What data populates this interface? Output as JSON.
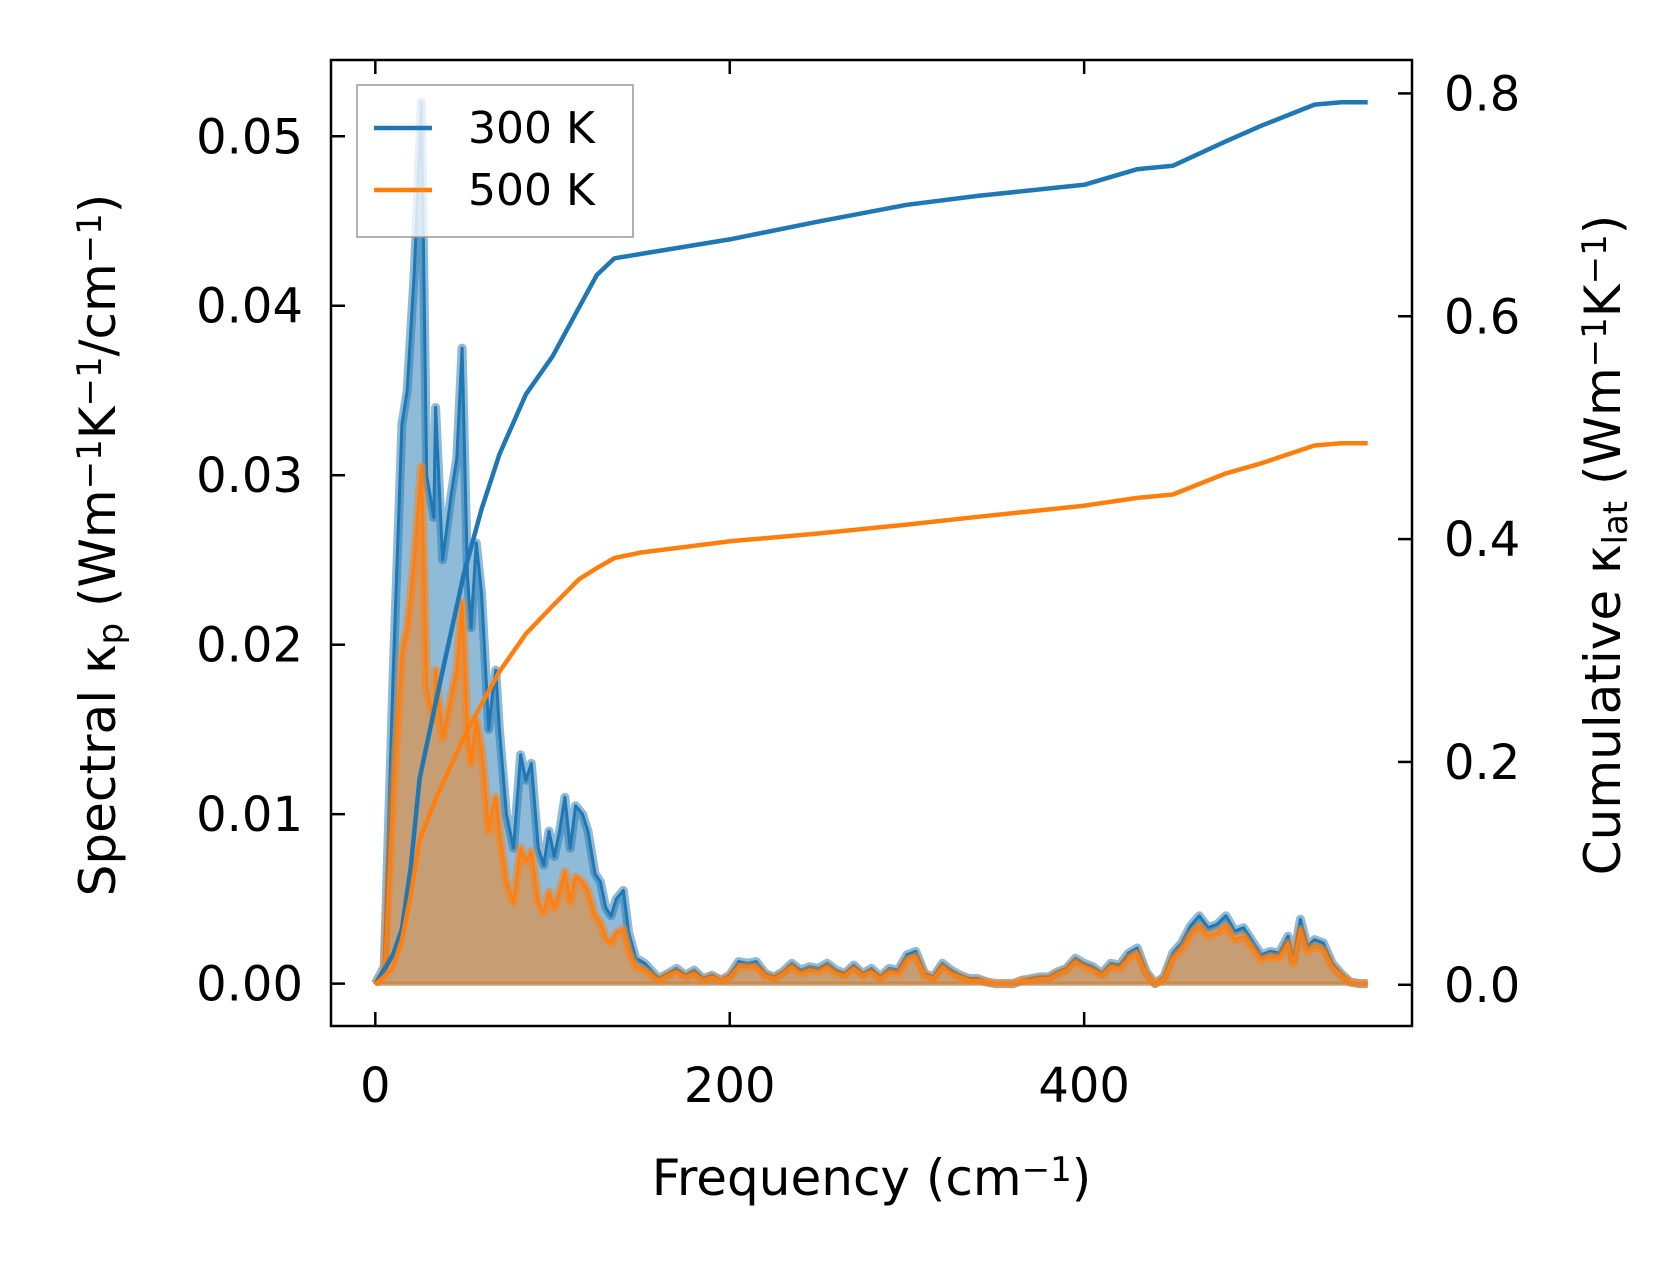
{
  "chart_data": {
    "type": "area+line",
    "xlabel": [
      {
        "t": "Frequency (cm"
      },
      {
        "t": "−1",
        "sup": true
      },
      {
        "t": ")"
      }
    ],
    "ylabel": [
      {
        "t": "Spectral κ"
      },
      {
        "t": "p",
        "sub": true
      },
      {
        "t": " (Wm"
      },
      {
        "t": "−1",
        "sup": true
      },
      {
        "t": "K"
      },
      {
        "t": "−1",
        "sup": true
      },
      {
        "t": "/cm"
      },
      {
        "t": "−1",
        "sup": true
      },
      {
        "t": ")"
      }
    ],
    "y2label": [
      {
        "t": "Cumulative κ"
      },
      {
        "t": "lat",
        "sub": true
      },
      {
        "t": " (Wm"
      },
      {
        "t": "−1",
        "sup": true
      },
      {
        "t": "K"
      },
      {
        "t": "−1",
        "sup": true
      },
      {
        "t": ")"
      }
    ],
    "xlim": [
      -25,
      585
    ],
    "ylim": [
      -0.0025,
      0.0545
    ],
    "y2lim": [
      -0.037,
      0.83
    ],
    "x_ticks": [
      0,
      200,
      400
    ],
    "x_tick_labels": [
      "0",
      "200",
      "400"
    ],
    "y_ticks": [
      0,
      0.01,
      0.02,
      0.03,
      0.04,
      0.05
    ],
    "y_tick_labels": [
      "0.00",
      "0.01",
      "0.02",
      "0.03",
      "0.04",
      "0.05"
    ],
    "y2_ticks": [
      0,
      0.2,
      0.4,
      0.6,
      0.8
    ],
    "y2_tick_labels": [
      "0.0",
      "0.2",
      "0.4",
      "0.6",
      "0.8"
    ],
    "legend": {
      "placement": "top-left",
      "entries": [
        "300 K",
        "500 K"
      ]
    },
    "colors": {
      "300 K": "#1f77b4",
      "500 K": "#ff7f0e"
    },
    "spectral": {
      "x": [
        0,
        5,
        10,
        15,
        18,
        22,
        26,
        29,
        33,
        34,
        38,
        43,
        46,
        49,
        52,
        54,
        57,
        60,
        62,
        64,
        66,
        68,
        70,
        74,
        78,
        82,
        85,
        88,
        92,
        95,
        98,
        101,
        104,
        107,
        110,
        113,
        117,
        120,
        124,
        127,
        130,
        133,
        136,
        140,
        143,
        147,
        152,
        160,
        165,
        170,
        175,
        180,
        185,
        190,
        195,
        200,
        205,
        210,
        215,
        220,
        225,
        230,
        235,
        240,
        245,
        250,
        255,
        260,
        265,
        270,
        275,
        280,
        285,
        290,
        295,
        300,
        305,
        310,
        315,
        320,
        325,
        330,
        335,
        340,
        345,
        350,
        360,
        365,
        370,
        375,
        380,
        385,
        390,
        395,
        400,
        405,
        410,
        415,
        420,
        425,
        430,
        435,
        440,
        445,
        450,
        455,
        460,
        465,
        470,
        475,
        480,
        485,
        490,
        495,
        500,
        505,
        510,
        515,
        518,
        522,
        526,
        530,
        535,
        540,
        545,
        550,
        555,
        560
      ],
      "series": [
        {
          "name": "300 K",
          "values": [
            0,
            0.001,
            0.018,
            0.033,
            0.035,
            0.042,
            0.052,
            0.03,
            0.0275,
            0.034,
            0.025,
            0.029,
            0.031,
            0.0375,
            0.024,
            0.021,
            0.026,
            0.023,
            0.019,
            0.015,
            0.017,
            0.0185,
            0.015,
            0.01,
            0.008,
            0.0135,
            0.012,
            0.013,
            0.008,
            0.007,
            0.009,
            0.0075,
            0.009,
            0.011,
            0.008,
            0.0105,
            0.01,
            0.009,
            0.0065,
            0.006,
            0.0045,
            0.004,
            0.005,
            0.0055,
            0.003,
            0.0015,
            0.0012,
            0.0003,
            0.0006,
            0.0009,
            0.0005,
            0.0008,
            0.0003,
            0.0005,
            0.0002,
            0.0005,
            0.0013,
            0.0012,
            0.0013,
            0.0006,
            0.0004,
            0.0007,
            0.0012,
            0.0008,
            0.001,
            0.0009,
            0.0012,
            0.0008,
            0.0006,
            0.0011,
            0.0006,
            0.0009,
            0.0004,
            0.0009,
            0.0008,
            0.0017,
            0.0019,
            0.0006,
            0.0004,
            0.0012,
            0.0008,
            0.0005,
            0.0003,
            0.0003,
            0.0001,
            0,
            0,
            0.0002,
            0.0003,
            0.0004,
            0.0004,
            0.0007,
            0.0009,
            0.0015,
            0.0012,
            0.001,
            0.0006,
            0.0012,
            0.0011,
            0.0018,
            0.0021,
            0.0007,
            0,
            0.0004,
            0.0018,
            0.0024,
            0.0034,
            0.004,
            0.0033,
            0.0035,
            0.004,
            0.0031,
            0.0033,
            0.0025,
            0.0017,
            0.0019,
            0.0018,
            0.0028,
            0.0014,
            0.0038,
            0.0022,
            0.0026,
            0.0024,
            0.0012,
            0.0006,
            0.0001,
            0,
            0
          ]
        },
        {
          "name": "500 K",
          "values": [
            0,
            0.0006,
            0.011,
            0.0195,
            0.021,
            0.025,
            0.0305,
            0.0175,
            0.0155,
            0.0185,
            0.0145,
            0.017,
            0.0185,
            0.0225,
            0.015,
            0.013,
            0.0155,
            0.0138,
            0.0115,
            0.009,
            0.0102,
            0.011,
            0.009,
            0.006,
            0.0048,
            0.008,
            0.0072,
            0.0078,
            0.0048,
            0.0042,
            0.0054,
            0.0045,
            0.0054,
            0.0066,
            0.0048,
            0.0063,
            0.006,
            0.0054,
            0.004,
            0.0036,
            0.0027,
            0.0024,
            0.003,
            0.0032,
            0.0019,
            0.001,
            0.0008,
            0.0002,
            0.0005,
            0.0007,
            0.0004,
            0.0006,
            0.0002,
            0.0004,
            0.0002,
            0.0004,
            0.001,
            0.001,
            0.001,
            0.0005,
            0.0003,
            0.0006,
            0.001,
            0.0006,
            0.0008,
            0.0007,
            0.001,
            0.0006,
            0.0005,
            0.0009,
            0.0005,
            0.0007,
            0.0003,
            0.0007,
            0.0006,
            0.0014,
            0.0016,
            0.0005,
            0.0003,
            0.001,
            0.0006,
            0.0004,
            0.0002,
            0.0002,
            0.0001,
            0,
            0,
            0.0002,
            0.0002,
            0.0003,
            0.0003,
            0.0006,
            0.0008,
            0.0013,
            0.001,
            0.0008,
            0.0005,
            0.001,
            0.0009,
            0.0015,
            0.0018,
            0.0006,
            0,
            0.0003,
            0.0015,
            0.002,
            0.0029,
            0.0034,
            0.0028,
            0.003,
            0.0034,
            0.0026,
            0.0028,
            0.0021,
            0.0014,
            0.0016,
            0.0015,
            0.0024,
            0.0012,
            0.0032,
            0.0019,
            0.0022,
            0.002,
            0.001,
            0.0005,
            0.0001,
            0,
            0
          ]
        }
      ]
    },
    "cumulative": {
      "x": [
        0,
        10,
        15,
        20,
        25,
        35,
        50,
        60,
        70,
        85,
        100,
        115,
        125,
        135,
        150,
        200,
        250,
        300,
        340,
        400,
        430,
        450,
        480,
        500,
        530,
        545,
        560
      ],
      "series": [
        {
          "name": "300 K",
          "values": [
            0,
            0.027,
            0.05,
            0.105,
            0.185,
            0.26,
            0.369,
            0.427,
            0.476,
            0.53,
            0.564,
            0.608,
            0.637,
            0.652,
            0.656,
            0.669,
            0.685,
            0.7,
            0.708,
            0.718,
            0.732,
            0.735,
            0.757,
            0.771,
            0.79,
            0.792,
            0.792
          ]
        },
        {
          "name": "500 K",
          "values": [
            0,
            0.015,
            0.04,
            0.08,
            0.13,
            0.17,
            0.222,
            0.252,
            0.281,
            0.315,
            0.34,
            0.364,
            0.374,
            0.383,
            0.388,
            0.398,
            0.405,
            0.413,
            0.42,
            0.43,
            0.437,
            0.44,
            0.459,
            0.468,
            0.484,
            0.486,
            0.486
          ]
        }
      ]
    }
  }
}
